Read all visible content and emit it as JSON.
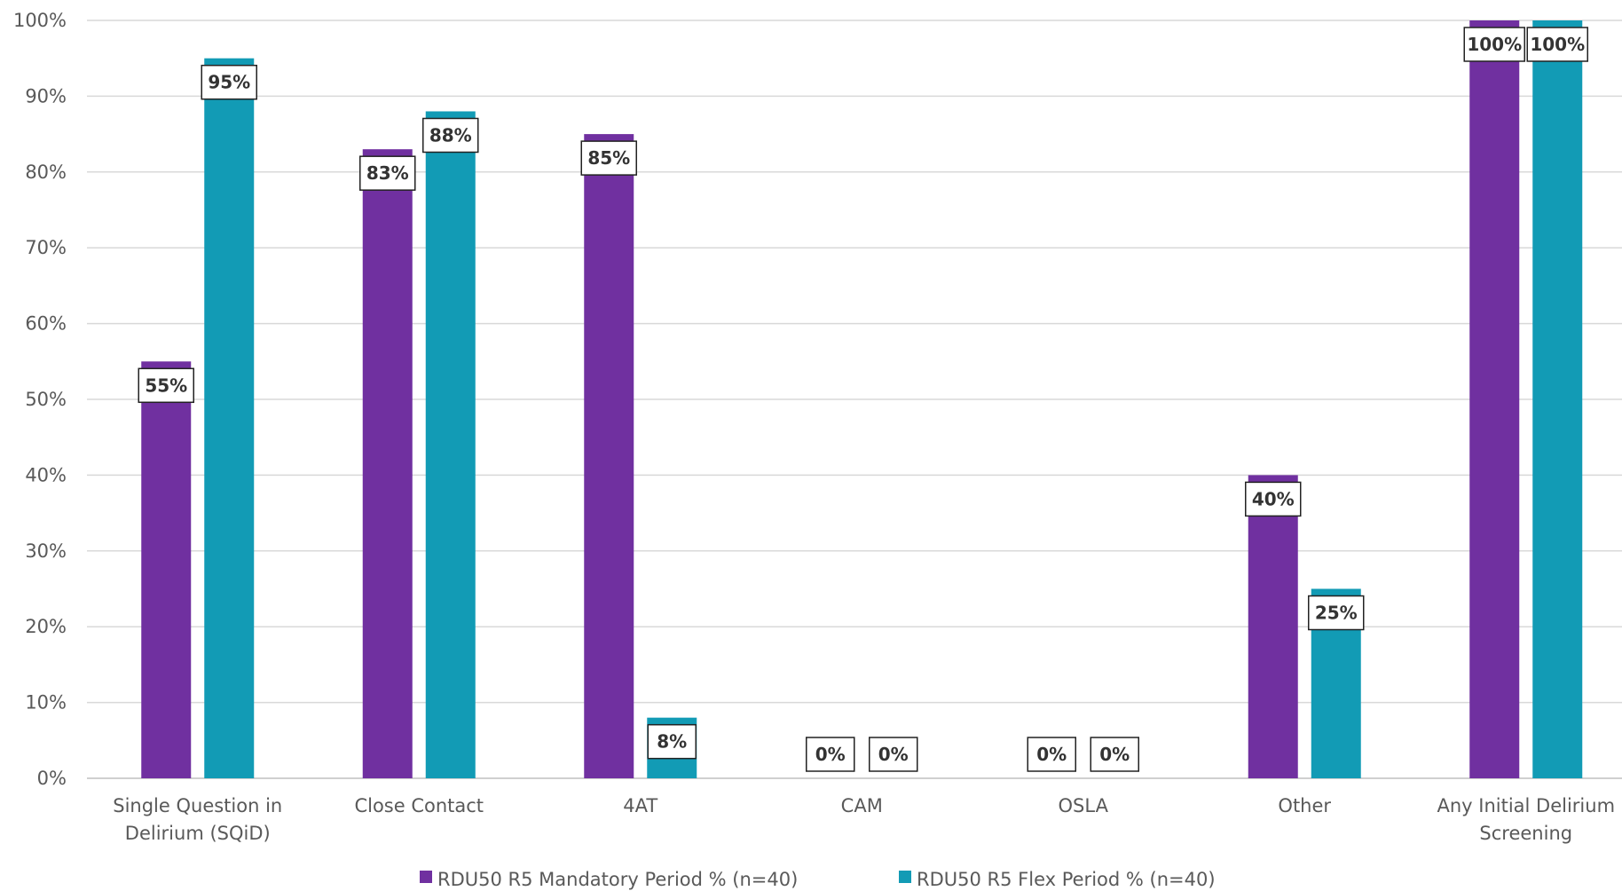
{
  "chart_data": {
    "type": "bar",
    "categories": [
      [
        "Single Question in",
        "Delirium (SQiD)"
      ],
      [
        "Close Contact"
      ],
      [
        "4AT"
      ],
      [
        "CAM"
      ],
      [
        "OSLA"
      ],
      [
        "Other"
      ],
      [
        "Any Initial Delirium",
        "Screening"
      ]
    ],
    "series": [
      {
        "name": "RDU50 R5 Mandatory Period % (n=40)",
        "color": "#7030a0",
        "values": [
          55,
          83,
          85,
          0,
          0,
          40,
          100
        ],
        "labels": [
          "55%",
          "83%",
          "85%",
          "0%",
          "0%",
          "40%",
          "100%"
        ]
      },
      {
        "name": "RDU50 R5 Flex Period % (n=40)",
        "color": "#129bb5",
        "values": [
          95,
          88,
          8,
          0,
          0,
          25,
          100
        ],
        "labels": [
          "95%",
          "88%",
          "8%",
          "0%",
          "0%",
          "25%",
          "100%"
        ]
      }
    ],
    "yticks": [
      "0%",
      "10%",
      "20%",
      "30%",
      "40%",
      "50%",
      "60%",
      "70%",
      "80%",
      "90%",
      "100%"
    ],
    "ylim": [
      0,
      100
    ],
    "grid": true,
    "legend_position": "bottom"
  }
}
